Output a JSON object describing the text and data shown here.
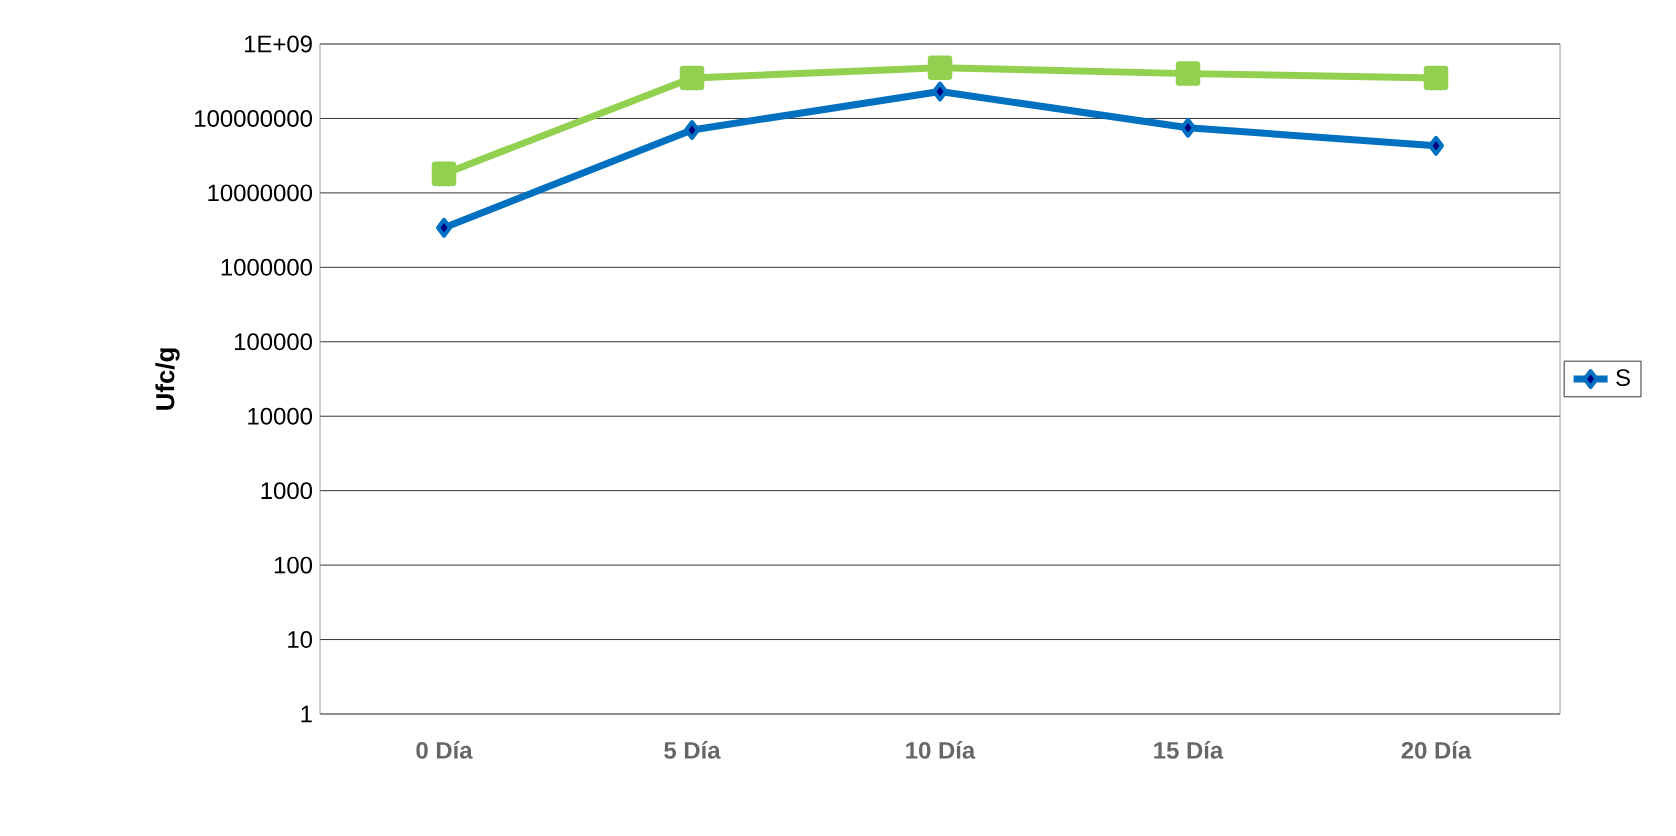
{
  "chart_data": {
    "type": "line",
    "ylabel": "Ufc/g",
    "categories": [
      "0 Día",
      "5 Día",
      "10 Día",
      "15 Día",
      "20 Día"
    ],
    "series": [
      {
        "name": "S",
        "color": "#0070c0",
        "marker": "diamond",
        "values": [
          3400000,
          70000000,
          230000000,
          75000000,
          43000000
        ]
      },
      {
        "color": "#92d050",
        "marker": "square",
        "values": [
          18000000,
          350000000,
          480000000,
          400000000,
          350000000
        ]
      }
    ],
    "log": "y",
    "ylim": [
      1,
      1000000000
    ],
    "yticks": [
      1,
      10,
      100,
      1000,
      10000,
      100000,
      1000000,
      10000000,
      100000000,
      {
        "value": 1000000000,
        "label": "1E+09"
      }
    ],
    "grid": "y",
    "legend": "right"
  }
}
